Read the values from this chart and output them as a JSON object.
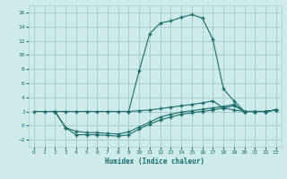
{
  "xlabel": "Humidex (Indice chaleur)",
  "bg_color": "#ceeaea",
  "grid_color": "#aacccc",
  "line_color": "#1a6b6b",
  "xlim": [
    -0.5,
    23.5
  ],
  "ylim": [
    -3,
    17
  ],
  "xticks": [
    0,
    1,
    2,
    3,
    4,
    5,
    6,
    7,
    8,
    9,
    10,
    11,
    12,
    13,
    14,
    15,
    16,
    17,
    18,
    19,
    20,
    21,
    22,
    23
  ],
  "yticks": [
    -2,
    0,
    2,
    4,
    6,
    8,
    10,
    12,
    14,
    16
  ],
  "line1_x": [
    0,
    1,
    2,
    3,
    4,
    5,
    6,
    7,
    8,
    9,
    10,
    11,
    12,
    13,
    14,
    15,
    16,
    17,
    18,
    19,
    20,
    21,
    22,
    23
  ],
  "line1_y": [
    2.0,
    2.0,
    2.0,
    2.0,
    2.0,
    2.0,
    2.0,
    2.0,
    2.0,
    2.0,
    2.1,
    2.2,
    2.4,
    2.6,
    2.8,
    3.0,
    3.2,
    3.5,
    2.5,
    2.2,
    2.0,
    2.0,
    2.0,
    2.2
  ],
  "line2_x": [
    2,
    3,
    4,
    5,
    6,
    7,
    8,
    9,
    10,
    11,
    12,
    13,
    14,
    15,
    16,
    17,
    18,
    19,
    20,
    21,
    22,
    23
  ],
  "line2_y": [
    2.0,
    -0.3,
    -1.3,
    -1.3,
    -1.3,
    -1.4,
    -1.5,
    -1.3,
    -0.5,
    0.2,
    0.8,
    1.2,
    1.6,
    1.8,
    2.0,
    2.2,
    2.5,
    2.8,
    2.0,
    2.0,
    2.0,
    2.2
  ],
  "line3_x": [
    2,
    3,
    4,
    5,
    6,
    7,
    8,
    9,
    10,
    11,
    12,
    13,
    14,
    15,
    16,
    17,
    18,
    19,
    20,
    21,
    22,
    23
  ],
  "line3_y": [
    2.0,
    -0.3,
    -0.8,
    -1.0,
    -1.0,
    -1.1,
    -1.2,
    -0.9,
    -0.2,
    0.5,
    1.2,
    1.6,
    1.9,
    2.1,
    2.3,
    2.5,
    2.7,
    3.0,
    2.0,
    2.0,
    2.0,
    2.2
  ],
  "line4_x": [
    9,
    10,
    11,
    12,
    13,
    14,
    15,
    16,
    17,
    18,
    19,
    20,
    21,
    22,
    23
  ],
  "line4_y": [
    2.0,
    7.8,
    13.0,
    14.5,
    14.8,
    15.3,
    15.7,
    15.2,
    12.2,
    5.2,
    3.5,
    2.0,
    2.0,
    2.0,
    2.2
  ]
}
